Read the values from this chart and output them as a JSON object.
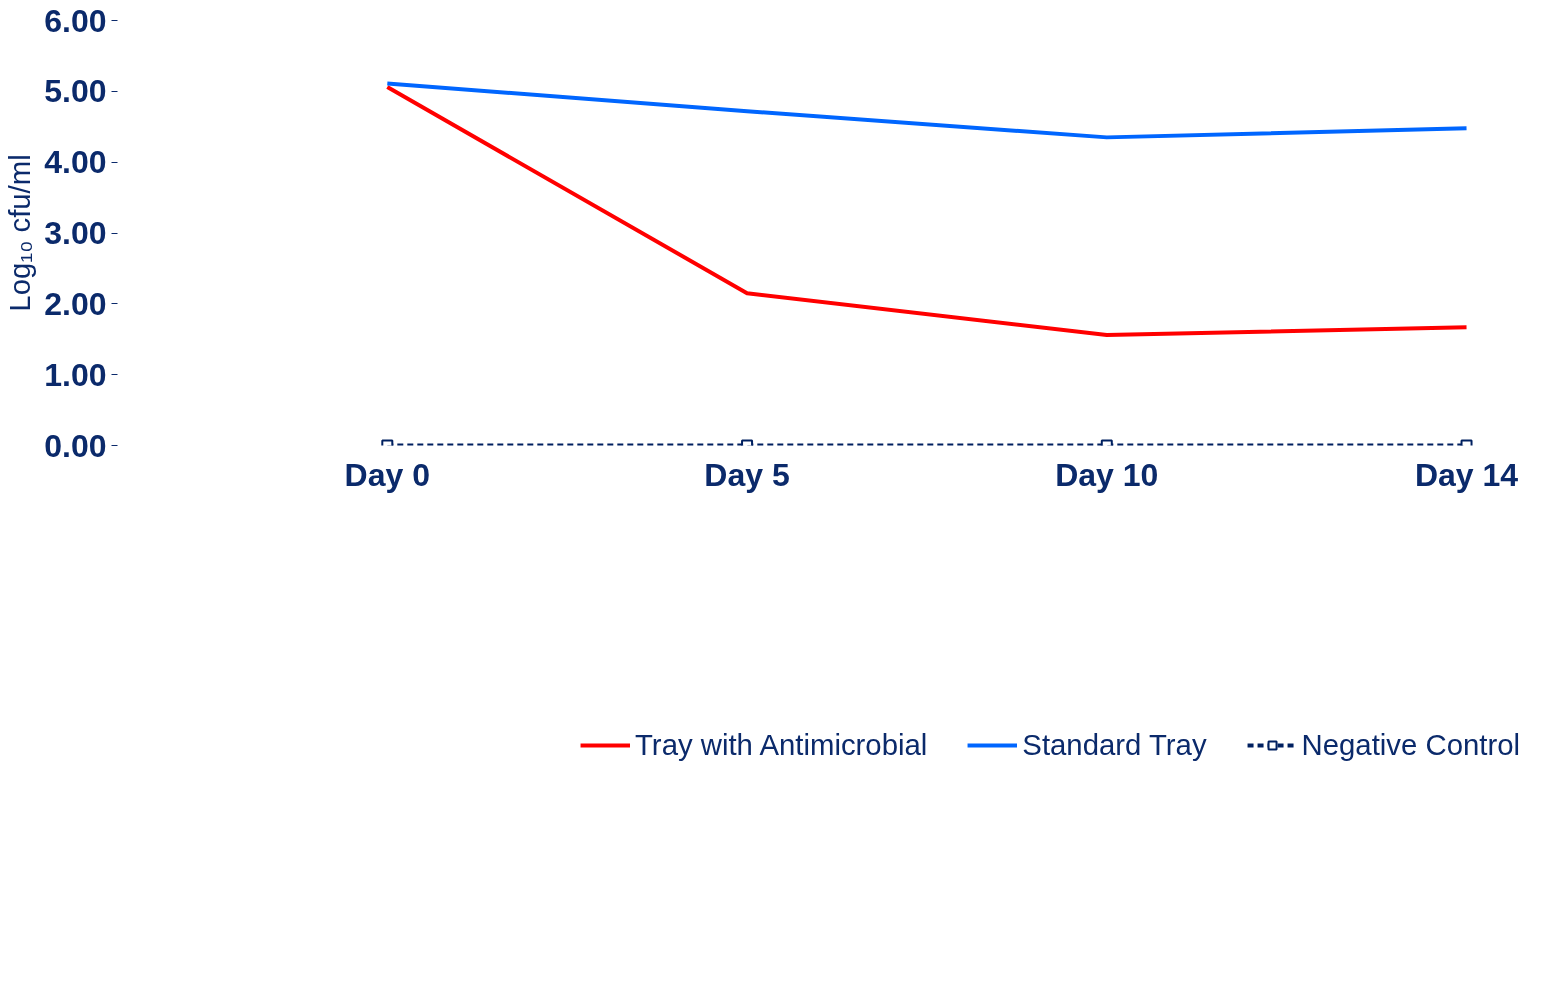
{
  "chart_data": {
    "type": "line",
    "categories": [
      "Day 0",
      "Day 5",
      "Day 10",
      "Day 14"
    ],
    "ylabel": "Log₁₀ cfu/ml",
    "ylim": [
      0,
      6
    ],
    "yticks": [
      {
        "value": 0,
        "label": "0.00"
      },
      {
        "value": 1,
        "label": "1.00"
      },
      {
        "value": 2,
        "label": "2.00"
      },
      {
        "value": 3,
        "label": "3.00"
      },
      {
        "value": 4,
        "label": "4.00"
      },
      {
        "value": 5,
        "label": "5.00"
      },
      {
        "value": 6,
        "label": "6.00"
      }
    ],
    "series": [
      {
        "name": "Tray with Antimicrobial",
        "color": "#ff0000",
        "values": [
          5.06,
          2.15,
          1.56,
          1.67
        ]
      },
      {
        "name": "Standard Tray",
        "color": "#0066ff",
        "values": [
          5.11,
          4.72,
          4.35,
          4.48
        ]
      },
      {
        "name": "Negative Control",
        "color": "#002060",
        "values": [
          0,
          0,
          0,
          0
        ],
        "marker": "square",
        "line_style": "dashed"
      }
    ],
    "grid": false,
    "legend": "bottom"
  }
}
